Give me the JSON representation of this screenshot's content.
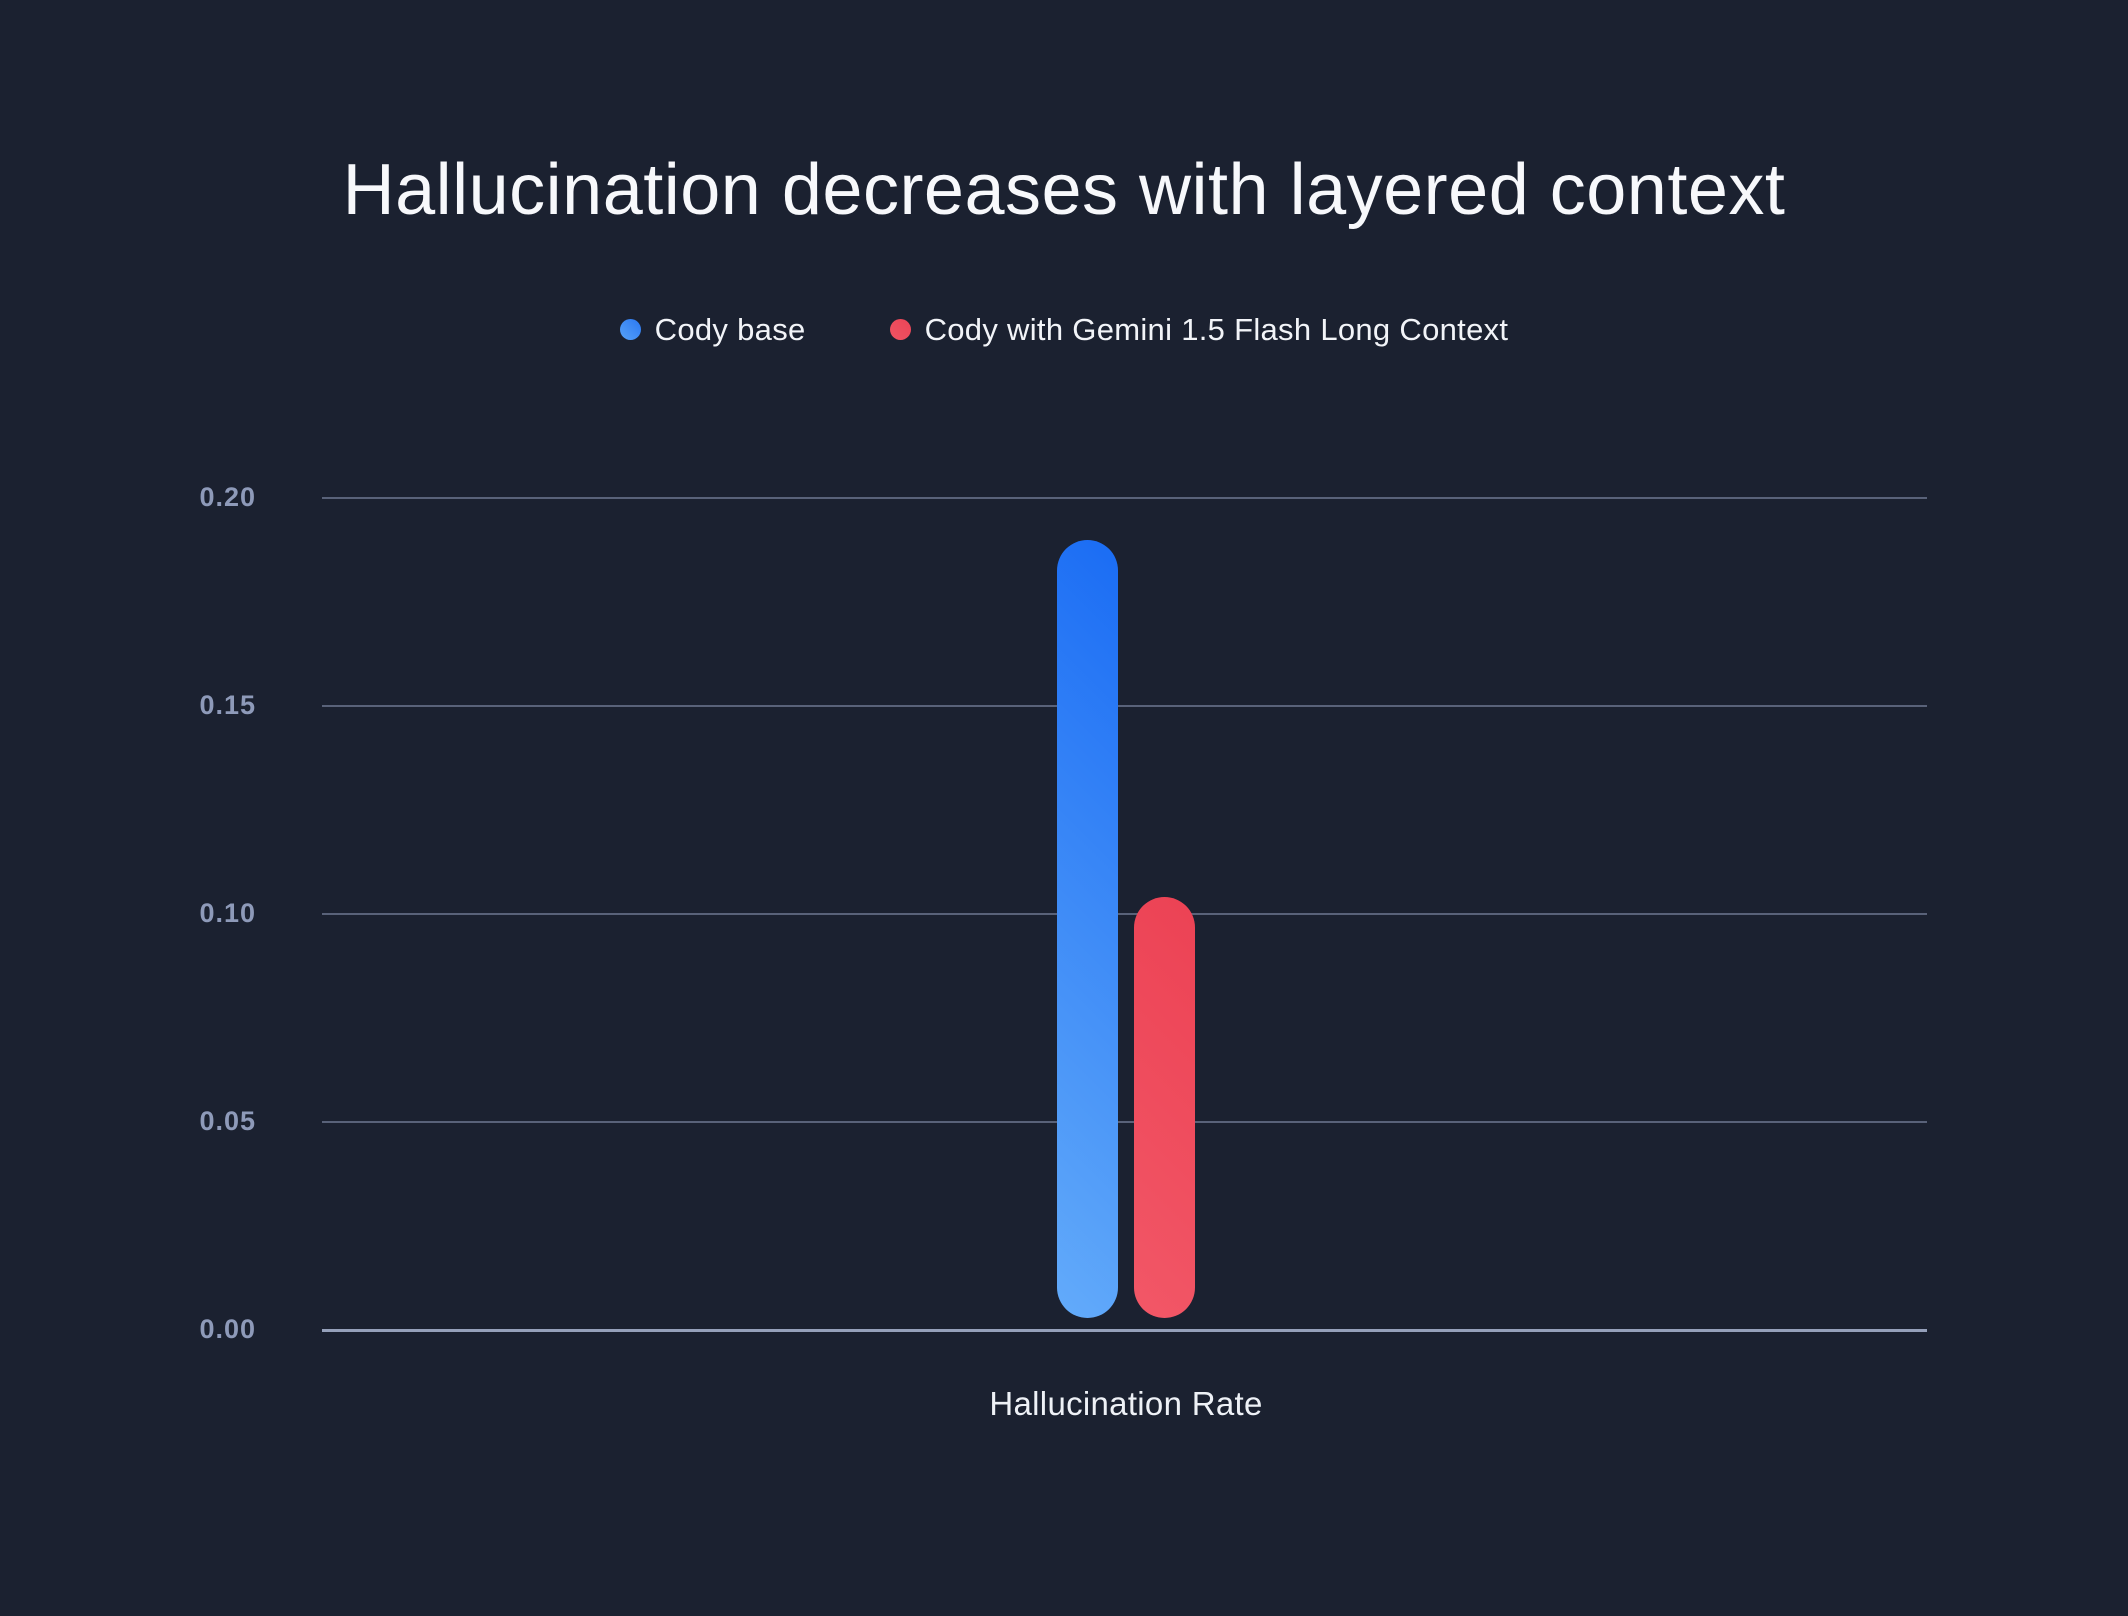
{
  "page": {
    "background_color": "#1b2130"
  },
  "chart_data": {
    "type": "bar",
    "title": "Hallucination decreases with layered context",
    "xlabel": "Hallucination Rate",
    "ylabel": "",
    "categories": [
      "Hallucination Rate"
    ],
    "series": [
      {
        "name": "Cody base",
        "values": [
          0.19
        ],
        "gradient": [
          "#63abfa",
          "#1a6cf4"
        ],
        "marker_gradient": [
          "#57a2f8",
          "#2b78f2"
        ]
      },
      {
        "name": "Cody with Gemini 1.5 Flash Long Context",
        "values": [
          0.104
        ],
        "gradient": [
          "#f25767",
          "#ec4254"
        ],
        "marker_gradient": [
          "#f05363",
          "#ec4557"
        ]
      }
    ],
    "ylim": [
      0,
      0.2
    ],
    "yticks": [
      0,
      0.05,
      0.1,
      0.15,
      0.2
    ],
    "ytick_labels": [
      "0.00",
      "0.05",
      "0.10",
      "0.15",
      "0.20"
    ],
    "grid": true,
    "legend_position": "top-center",
    "style": {
      "background": "#1b2130",
      "title_color": "#f7f8fb",
      "legend_text_color": "#f2f4f8",
      "tick_label_color": "#8e9ab9",
      "gridline_color": "rgba(151,163,193,0.5)",
      "baseline_color": "rgba(160,171,199,0.92)",
      "axis_label_color": "#eef1f6"
    }
  }
}
